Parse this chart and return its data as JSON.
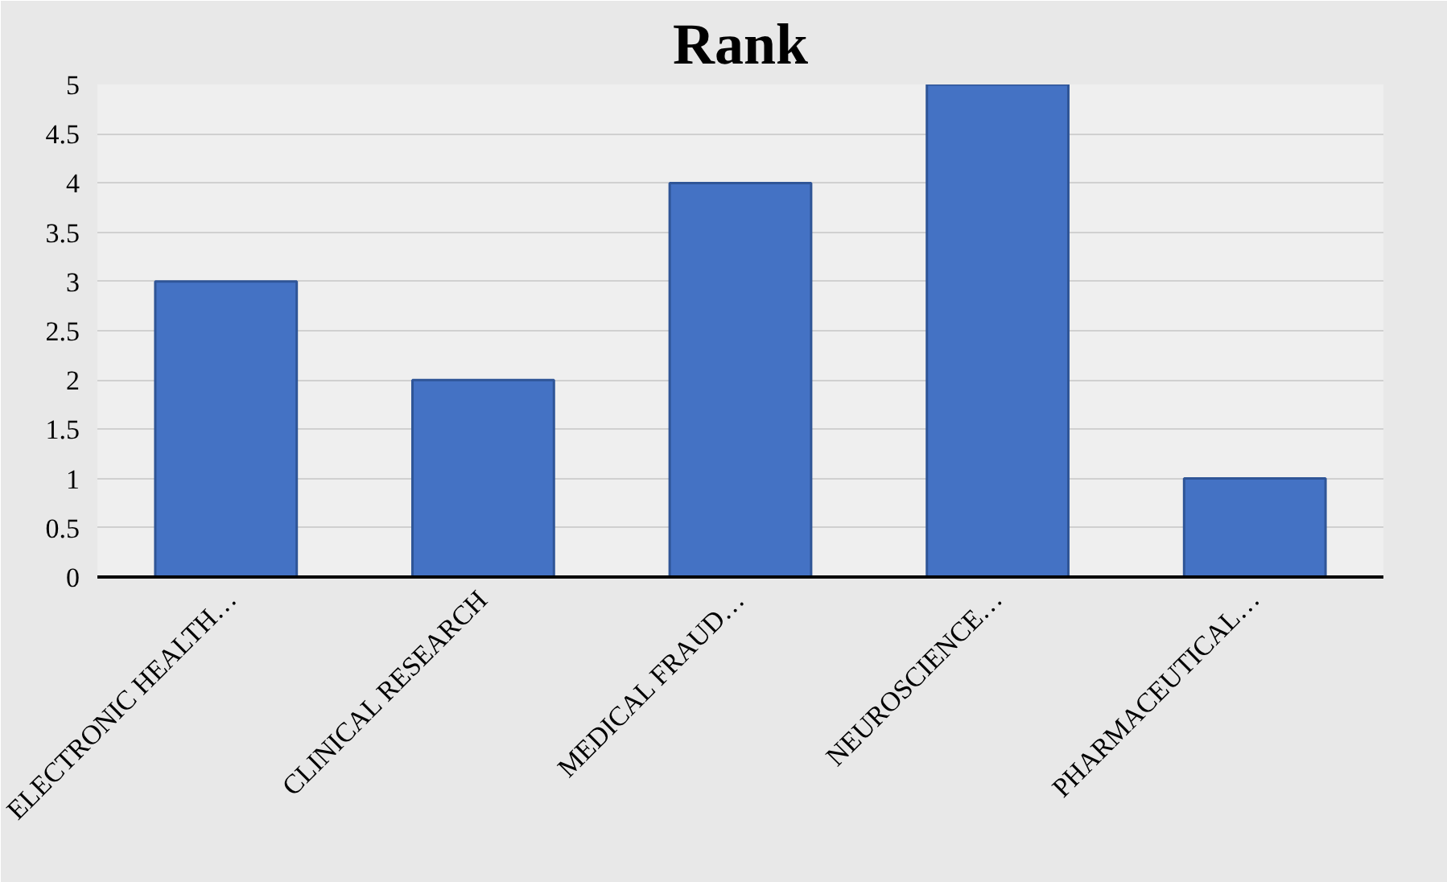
{
  "chart_data": {
    "type": "bar",
    "title": "Rank",
    "categories": [
      "ELECTRONIC HEALTH…",
      "CLINICAL RESEARCH",
      "MEDICAL FRAUD…",
      "NEUROSCIENCE…",
      "PHARMACEUTICAL…"
    ],
    "values": [
      3,
      2,
      4,
      5,
      1
    ],
    "color": "#4472c4",
    "ylim": [
      0,
      5
    ],
    "yticks": [
      0,
      0.5,
      1,
      1.5,
      2,
      2.5,
      3,
      3.5,
      4,
      4.5,
      5
    ],
    "grid": "y"
  }
}
